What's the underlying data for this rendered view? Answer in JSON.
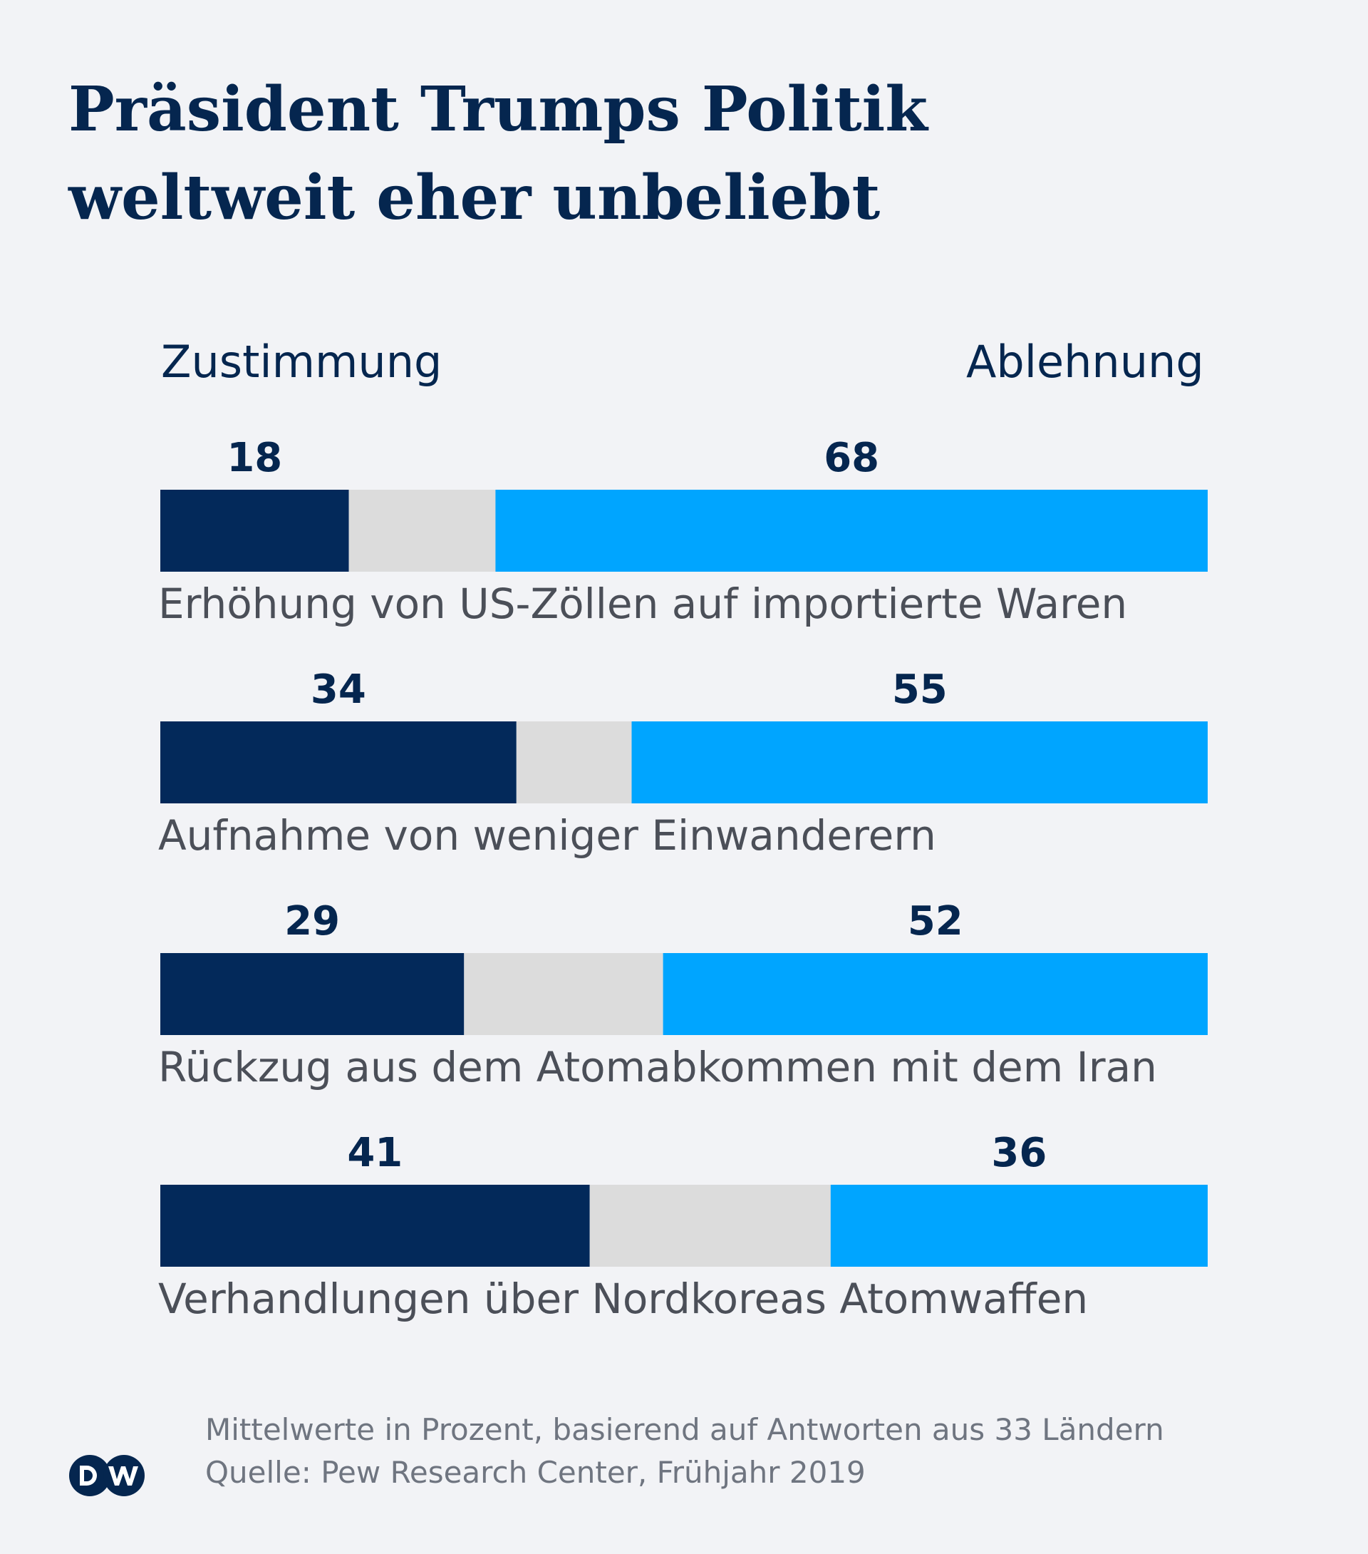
{
  "title_lines": [
    "Präsident Trumps Politik",
    "weltweit eher unbeliebt"
  ],
  "legend": {
    "approve": "Zustimmung",
    "reject": "Ablehnung"
  },
  "colors": {
    "approve": "#03295a",
    "neutral": "#dcdcdc",
    "reject": "#00a5ff"
  },
  "chart_data": {
    "type": "bar",
    "stacked": true,
    "orientation": "horizontal",
    "title": "Präsident Trumps Politik weltweit eher unbeliebt",
    "categories": [
      "Erhöhung von US-Zöllen auf importierte Waren",
      "Aufnahme von weniger Einwanderern",
      "Rückzug aus dem Atomabkommen mit dem Iran",
      "Verhandlungen über Nordkoreas Atomwaffen"
    ],
    "series": [
      {
        "name": "Zustimmung",
        "values": [
          18,
          34,
          29,
          41
        ]
      },
      {
        "values": [
          14,
          11,
          19,
          23
        ]
      },
      {
        "name": "Ablehnung",
        "values": [
          68,
          55,
          52,
          36
        ]
      }
    ],
    "xlim": [
      0,
      100
    ],
    "legend_position": "top"
  },
  "footnote_lines": [
    "Mittelwerte in Prozent, basierend auf Antworten aus 33 Ländern",
    "Quelle: Pew Research Center, Frühjahr 2019"
  ],
  "logo_icon": "dw-logo-icon"
}
